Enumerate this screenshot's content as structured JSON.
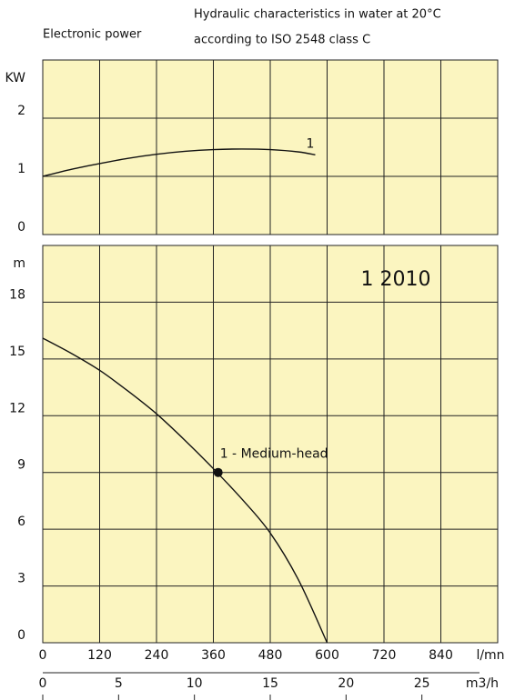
{
  "header": {
    "lines": [
      "Hydraulic characteristics in water at 20°C",
      "according to ISO 2548 class C"
    ]
  },
  "chart_data": [
    {
      "type": "line",
      "title": "Electronic power",
      "ylabel": "KW",
      "xlim": [
        0,
        960
      ],
      "ylim": [
        0,
        3
      ],
      "yticks": [
        0,
        1,
        2
      ],
      "grid": true,
      "background": "#fbf5c0",
      "series": [
        {
          "name": "1",
          "color": "#111111",
          "x": [
            0,
            60,
            120,
            180,
            240,
            300,
            360,
            420,
            480,
            540,
            575
          ],
          "values": [
            1.0,
            1.12,
            1.22,
            1.31,
            1.38,
            1.43,
            1.46,
            1.47,
            1.46,
            1.42,
            1.37
          ]
        }
      ]
    },
    {
      "type": "line",
      "title": "1 2010",
      "ylabel": "m",
      "xlim": [
        0,
        960
      ],
      "xticks": [
        0,
        120,
        240,
        360,
        480,
        600,
        720,
        840
      ],
      "xlabel": "l/mn",
      "x2lim": [
        0,
        30
      ],
      "x2ticks": [
        0,
        5,
        10,
        15,
        20,
        25
      ],
      "x2label": "m3/h",
      "ylim": [
        0,
        21
      ],
      "yticks": [
        0,
        3,
        6,
        9,
        12,
        15,
        18
      ],
      "grid": true,
      "background": "#fbf5c0",
      "series": [
        {
          "name": "1 - Medium-head",
          "color": "#111111",
          "x": [
            0,
            60,
            120,
            180,
            240,
            300,
            360,
            420,
            480,
            540,
            600
          ],
          "values": [
            16.1,
            15.3,
            14.4,
            13.3,
            12.1,
            10.7,
            9.2,
            7.6,
            5.8,
            3.3,
            0
          ]
        }
      ],
      "marker": {
        "x": 370,
        "y": 9
      }
    }
  ]
}
